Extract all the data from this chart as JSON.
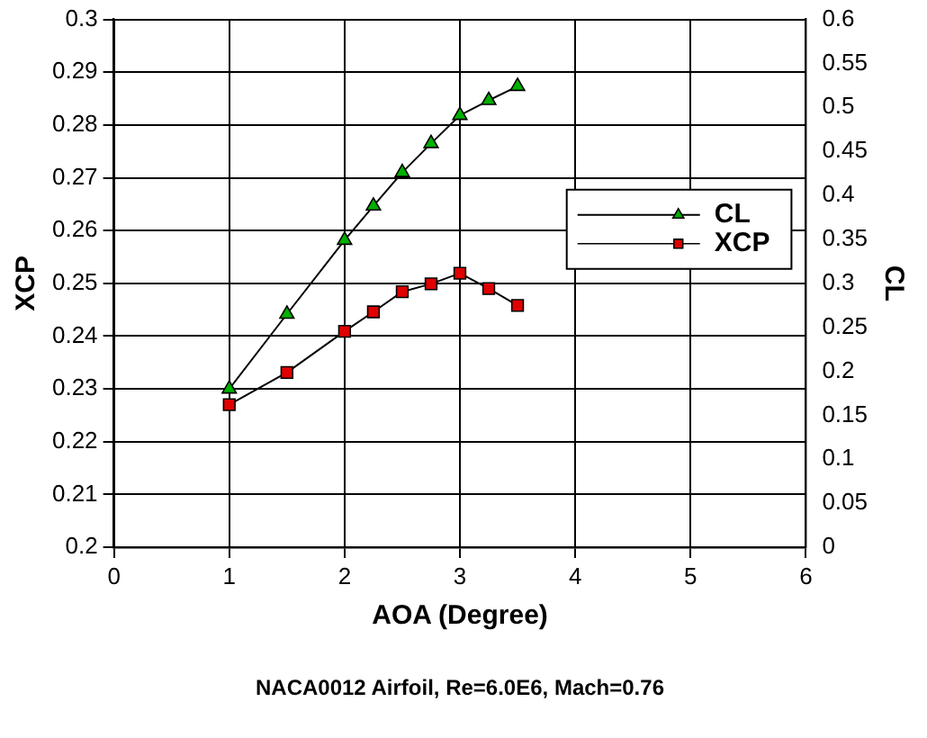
{
  "chart_data": {
    "type": "line",
    "title": "NACA0012 Airfoil, Re=6.0E6, Mach=0.76",
    "xlabel": "AOA (Degree)",
    "ylabel": "XCP",
    "y2label": "CL",
    "x": [
      1,
      1.5,
      2,
      2.25,
      2.5,
      2.75,
      3,
      3.25,
      3.5
    ],
    "series": [
      {
        "name": "CL",
        "color": "#00b000",
        "axis": "y2",
        "marker": "triangle",
        "values": [
          0.18,
          0.265,
          0.349,
          0.388,
          0.426,
          0.459,
          0.491,
          0.508,
          0.524
        ]
      },
      {
        "name": "XCP",
        "color": "#e00000",
        "marker": "square",
        "values": [
          0.227,
          0.2331,
          0.2409,
          0.2446,
          0.2484,
          0.2499,
          0.2519,
          0.249,
          0.2458
        ]
      }
    ],
    "xlim": [
      0,
      6
    ],
    "xticks": [
      0,
      1,
      2,
      3,
      4,
      5,
      6
    ],
    "ylim": [
      0.2,
      0.3
    ],
    "yticks": [
      0.2,
      0.21,
      0.22,
      0.23,
      0.24,
      0.25,
      0.26,
      0.27,
      0.28,
      0.29,
      0.3
    ],
    "y2lim": [
      0,
      0.6
    ],
    "y2ticks": [
      0,
      0.05,
      0.1,
      0.15,
      0.2,
      0.25,
      0.3,
      0.35,
      0.4,
      0.45,
      0.5,
      0.55,
      0.6
    ],
    "grid": true,
    "legend": "right",
    "line_style": "solid"
  }
}
